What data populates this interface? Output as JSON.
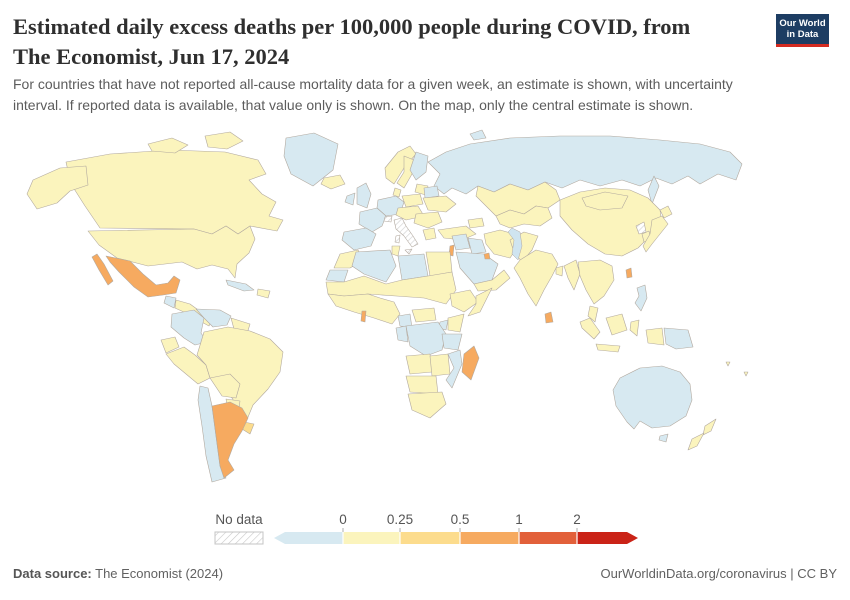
{
  "header": {
    "title_line1": "Estimated daily excess deaths per 100,000 people during COVID, from",
    "title_line2": "The Economist, Jun 17, 2024",
    "subtitle": "For countries that have not reported all-cause mortality data for a given week, an estimate is shown, with uncertainty interval. If reported data is available, that value only is shown. On the map, only the central estimate is shown.",
    "logo": {
      "line1": "Our World",
      "line2": "in Data",
      "bg_color": "#1d3d63",
      "accent_color": "#d42b21"
    }
  },
  "footer": {
    "source_label": "Data source:",
    "source_value": " The Economist (2024)",
    "right_text": "OurWorldinData.org/coronavirus | CC BY"
  },
  "map": {
    "ocean_color": "#ffffff",
    "border_color": "#b2a99f",
    "lake_color": "#cfe4f0",
    "hatch_line_color": "#d2d2d2"
  },
  "chart_data": {
    "type": "choropleth_map",
    "title": "Estimated daily excess deaths per 100,000 people during COVID, from The Economist, Jun 17, 2024",
    "unit": "estimated daily excess deaths per 100,000 people",
    "legend": {
      "no_data_label": "No data",
      "tick_labels": [
        "0",
        "0.25",
        "0.5",
        "1",
        "2"
      ],
      "bins": [
        {
          "range": "below 0",
          "level": "neg",
          "color": "#d7e9f1"
        },
        {
          "range": "0–0.25",
          "level": "l0",
          "color": "#fbf4bd"
        },
        {
          "range": "0.25–0.5",
          "level": "l025",
          "color": "#fcdc8d"
        },
        {
          "range": "0.5–1",
          "level": "l05",
          "color": "#f6aa60"
        },
        {
          "range": "1–2",
          "level": "l1",
          "color": "#e2603a"
        },
        {
          "range": "2+",
          "level": "l2",
          "color": "#ca2317"
        }
      ],
      "level_colors": {
        "neg": "#d7e9f1",
        "l0": "#fbf4bd",
        "l025": "#fcdc8d",
        "l05": "#f6aa60",
        "l1": "#e2603a",
        "l2": "#ca2317"
      },
      "no_data_pattern": "diagonal-hatch"
    },
    "regions": [
      {
        "id": "russia",
        "name": "Russia",
        "level": "neg"
      },
      {
        "id": "greenland",
        "name": "Greenland",
        "level": "neg"
      },
      {
        "id": "canada",
        "name": "Canada",
        "level": "l0"
      },
      {
        "id": "usa",
        "name": "United States",
        "level": "l0"
      },
      {
        "id": "mexico",
        "name": "Mexico",
        "level": "l05"
      },
      {
        "id": "guatemala",
        "name": "Guatemala",
        "level": "neg"
      },
      {
        "id": "central_america",
        "name": "Central America",
        "level": "l0"
      },
      {
        "id": "cuba",
        "name": "Cuba",
        "level": "neg"
      },
      {
        "id": "hispaniola",
        "name": "Hispaniola",
        "level": "l0"
      },
      {
        "id": "colombia",
        "name": "Colombia",
        "level": "neg"
      },
      {
        "id": "venezuela",
        "name": "Venezuela",
        "level": "neg"
      },
      {
        "id": "guyanas",
        "name": "Guyanas",
        "level": "l0"
      },
      {
        "id": "ecuador",
        "name": "Ecuador",
        "level": "l0"
      },
      {
        "id": "peru",
        "name": "Peru",
        "level": "l0"
      },
      {
        "id": "brazil",
        "name": "Brazil",
        "level": "l0"
      },
      {
        "id": "bolivia",
        "name": "Bolivia",
        "level": "l0"
      },
      {
        "id": "paraguay",
        "name": "Paraguay",
        "level": "l0"
      },
      {
        "id": "uruguay",
        "name": "Uruguay",
        "level": "l025"
      },
      {
        "id": "chile",
        "name": "Chile",
        "level": "neg"
      },
      {
        "id": "argentina",
        "name": "Argentina",
        "level": "l05"
      },
      {
        "id": "iceland",
        "name": "Iceland",
        "level": "l0"
      },
      {
        "id": "uk",
        "name": "United Kingdom",
        "level": "neg"
      },
      {
        "id": "ireland",
        "name": "Ireland",
        "level": "neg"
      },
      {
        "id": "norway",
        "name": "Norway",
        "level": "l0"
      },
      {
        "id": "sweden",
        "name": "Sweden",
        "level": "l0"
      },
      {
        "id": "finland",
        "name": "Finland",
        "level": "neg"
      },
      {
        "id": "denmark",
        "name": "Denmark",
        "level": "l0"
      },
      {
        "id": "baltics",
        "name": "Baltic states",
        "level": "l0"
      },
      {
        "id": "germany_benelux",
        "name": "Germany & Benelux",
        "level": "neg"
      },
      {
        "id": "france",
        "name": "France",
        "level": "neg"
      },
      {
        "id": "iberia",
        "name": "Spain & Portugal",
        "level": "neg"
      },
      {
        "id": "italy",
        "name": "Italy",
        "level": "no_data"
      },
      {
        "id": "switzerland",
        "name": "Switzerland",
        "level": "no_data"
      },
      {
        "id": "poland",
        "name": "Poland",
        "level": "l0"
      },
      {
        "id": "central_europe",
        "name": "Czechia, Austria & Hungary",
        "level": "l0"
      },
      {
        "id": "belarus",
        "name": "Belarus",
        "level": "neg"
      },
      {
        "id": "ukraine",
        "name": "Ukraine",
        "level": "l0"
      },
      {
        "id": "balkans",
        "name": "Romania & Balkans",
        "level": "l0"
      },
      {
        "id": "greece",
        "name": "Greece",
        "level": "l0"
      },
      {
        "id": "turkey",
        "name": "Turkey",
        "level": "l0"
      },
      {
        "id": "caucasus",
        "name": "Caucasus",
        "level": "l0"
      },
      {
        "id": "kazakhstan",
        "name": "Kazakhstan",
        "level": "l0"
      },
      {
        "id": "central_asia",
        "name": "Central Asia",
        "level": "l0"
      },
      {
        "id": "syria_jordan",
        "name": "Syria & Jordan",
        "level": "neg"
      },
      {
        "id": "iraq",
        "name": "Iraq",
        "level": "neg"
      },
      {
        "id": "saudi_arabia",
        "name": "Saudi Arabia",
        "level": "neg"
      },
      {
        "id": "israel",
        "name": "Israel",
        "level": "l05"
      },
      {
        "id": "kuwait",
        "name": "Kuwait",
        "level": "l05"
      },
      {
        "id": "yemen_oman",
        "name": "Yemen & Oman",
        "level": "l0"
      },
      {
        "id": "iran",
        "name": "Iran",
        "level": "l0"
      },
      {
        "id": "afghanistan_pakistan",
        "name": "Afghanistan & Pakistan",
        "level": "l0"
      },
      {
        "id": "india",
        "name": "India",
        "level": "l0"
      },
      {
        "id": "bangladesh",
        "name": "Bangladesh",
        "level": "l0"
      },
      {
        "id": "sri_lanka",
        "name": "Sri Lanka",
        "level": "l05"
      },
      {
        "id": "morocco",
        "name": "Morocco",
        "level": "l0"
      },
      {
        "id": "western_sahara",
        "name": "Western Sahara",
        "level": "neg"
      },
      {
        "id": "algeria",
        "name": "Algeria",
        "level": "neg"
      },
      {
        "id": "tunisia",
        "name": "Tunisia",
        "level": "l0"
      },
      {
        "id": "libya",
        "name": "Libya",
        "level": "neg"
      },
      {
        "id": "egypt",
        "name": "Egypt",
        "level": "l0"
      },
      {
        "id": "sahel",
        "name": "Sahel & Sudan",
        "level": "l0"
      },
      {
        "id": "west_africa",
        "name": "West Africa",
        "level": "l0"
      },
      {
        "id": "togo",
        "name": "Togo",
        "level": "l05"
      },
      {
        "id": "cameroon",
        "name": "Cameroon",
        "level": "neg"
      },
      {
        "id": "car",
        "name": "Central African Republic",
        "level": "l0"
      },
      {
        "id": "ethiopia",
        "name": "Ethiopia",
        "level": "l0"
      },
      {
        "id": "somalia",
        "name": "Somalia",
        "level": "l0"
      },
      {
        "id": "kenya",
        "name": "Kenya",
        "level": "l0"
      },
      {
        "id": "uganda",
        "name": "Uganda",
        "level": "neg"
      },
      {
        "id": "drc",
        "name": "Democratic Republic of Congo",
        "level": "neg"
      },
      {
        "id": "gabon_congo",
        "name": "Gabon & Congo",
        "level": "neg"
      },
      {
        "id": "tanzania",
        "name": "Tanzania",
        "level": "neg"
      },
      {
        "id": "angola",
        "name": "Angola",
        "level": "l0"
      },
      {
        "id": "zambia_zimbabwe",
        "name": "Zambia & Zimbabwe",
        "level": "l0"
      },
      {
        "id": "mozambique",
        "name": "Mozambique",
        "level": "neg"
      },
      {
        "id": "namibia_botswana",
        "name": "Namibia & Botswana",
        "level": "l0"
      },
      {
        "id": "south_africa",
        "name": "South Africa",
        "level": "l0"
      },
      {
        "id": "madagascar",
        "name": "Madagascar",
        "level": "l05"
      },
      {
        "id": "china",
        "name": "China",
        "level": "l0"
      },
      {
        "id": "mongolia",
        "name": "Mongolia",
        "level": "l0"
      },
      {
        "id": "north_korea",
        "name": "North Korea",
        "level": "no_data"
      },
      {
        "id": "south_korea",
        "name": "South Korea",
        "level": "l0"
      },
      {
        "id": "japan",
        "name": "Japan",
        "level": "l0"
      },
      {
        "id": "taiwan",
        "name": "Taiwan",
        "level": "l05"
      },
      {
        "id": "myanmar",
        "name": "Myanmar",
        "level": "l0"
      },
      {
        "id": "se_asia",
        "name": "Thailand, Laos, Vietnam & Cambodia",
        "level": "l0"
      },
      {
        "id": "malaysia",
        "name": "Malaysia",
        "level": "l0"
      },
      {
        "id": "indonesia",
        "name": "Indonesia",
        "level": "l0"
      },
      {
        "id": "philippines",
        "name": "Philippines",
        "level": "neg"
      },
      {
        "id": "png",
        "name": "Papua New Guinea",
        "level": "neg"
      },
      {
        "id": "australia",
        "name": "Australia",
        "level": "neg"
      },
      {
        "id": "new_zealand",
        "name": "New Zealand",
        "level": "l0"
      },
      {
        "id": "pacific",
        "name": "Pacific islands",
        "level": "l0"
      }
    ]
  }
}
